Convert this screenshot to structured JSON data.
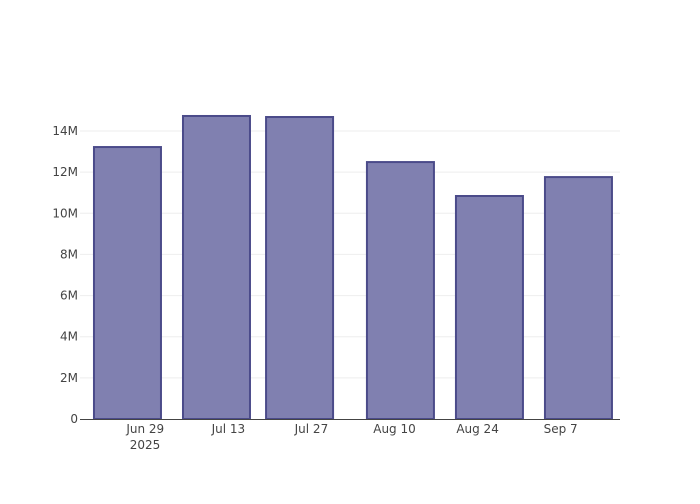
{
  "chart_data": {
    "type": "bar",
    "title": "",
    "xlabel": "",
    "ylabel": "",
    "x": [
      "2025-06-26",
      "2025-07-11",
      "2025-07-25",
      "2025-08-11",
      "2025-08-26",
      "2025-09-10"
    ],
    "values": [
      13220000,
      14730000,
      14680000,
      12490000,
      10840000,
      11760000
    ],
    "ylim": [
      0,
      14000000
    ],
    "xlim": [
      "2025-06-18",
      "2025-09-17"
    ],
    "yticks": [
      0,
      2000000,
      4000000,
      6000000,
      8000000,
      10000000,
      12000000,
      14000000
    ],
    "ytick_labels": [
      "0",
      "2M",
      "4M",
      "6M",
      "8M",
      "10M",
      "12M",
      "14M"
    ],
    "xticks": [
      "2025-06-29",
      "2025-07-13",
      "2025-07-27",
      "2025-08-10",
      "2025-08-24",
      "2025-09-07"
    ],
    "xtick_labels": [
      "Jun 29",
      "Jul 13",
      "Jul 27",
      "Aug 10",
      "Aug 24",
      "Sep 7"
    ],
    "xtick_year": "2025",
    "grid": true,
    "bar_fill": "#8080b0",
    "bar_stroke": "#4b4b8a"
  }
}
